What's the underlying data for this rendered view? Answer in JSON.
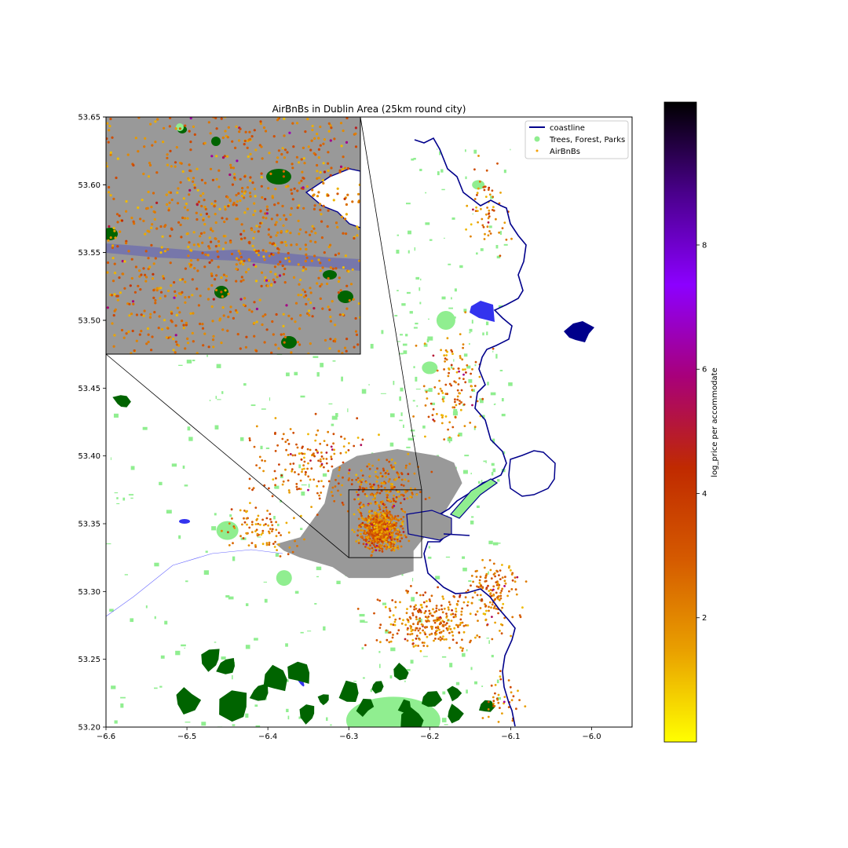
{
  "chart_data": {
    "type": "scatter",
    "title": "AirBnBs in Dublin Area (25km round city)",
    "xlabel": "",
    "ylabel": "",
    "xlim": [
      -6.6,
      -5.95
    ],
    "ylim": [
      53.2,
      53.65
    ],
    "xticks": [
      {
        "v": -6.6,
        "label": "−6.6"
      },
      {
        "v": -6.5,
        "label": "−6.5"
      },
      {
        "v": -6.4,
        "label": "−6.4"
      },
      {
        "v": -6.3,
        "label": "−6.3"
      },
      {
        "v": -6.2,
        "label": "−6.2"
      },
      {
        "v": -6.1,
        "label": "−6.1"
      },
      {
        "v": -6.0,
        "label": "−6.0"
      }
    ],
    "yticks": [
      {
        "v": 53.2,
        "label": "53.20"
      },
      {
        "v": 53.25,
        "label": "53.25"
      },
      {
        "v": 53.3,
        "label": "53.30"
      },
      {
        "v": 53.35,
        "label": "53.35"
      },
      {
        "v": 53.4,
        "label": "53.40"
      },
      {
        "v": 53.45,
        "label": "53.45"
      },
      {
        "v": 53.5,
        "label": "53.50"
      },
      {
        "v": 53.55,
        "label": "53.55"
      },
      {
        "v": 53.6,
        "label": "53.60"
      },
      {
        "v": 53.65,
        "label": "53.65"
      }
    ],
    "legend": {
      "placement": "top-right",
      "entries": [
        {
          "label": "coastline",
          "kind": "line",
          "color": "#00008b"
        },
        {
          "label": "Trees, Forest, Parks",
          "kind": "circle",
          "color": "#90ee90"
        },
        {
          "label": "AirBnBs",
          "kind": "dot",
          "color": "#f5a000"
        }
      ]
    },
    "inset": {
      "xlim": [
        -6.3,
        -6.21
      ],
      "ylim": [
        53.325,
        53.375
      ],
      "yticks": [
        {
          "v": 53.5,
          "label": "53.50"
        },
        {
          "v": 53.55,
          "label": "53.55"
        },
        {
          "v": 53.6,
          "label": "53.60"
        },
        {
          "v": 53.65,
          "label": "53.65"
        }
      ]
    },
    "colorbar": {
      "label": "log_price per accommodate",
      "cmap": "gnuplot_r",
      "range": [
        0,
        10.3
      ],
      "ticks": [
        {
          "v": 2,
          "label": "2"
        },
        {
          "v": 4,
          "label": "4"
        },
        {
          "v": 6,
          "label": "6"
        },
        {
          "v": 8,
          "label": "8"
        }
      ],
      "stops": [
        "#ffff00",
        "#e9a000",
        "#d55a00",
        "#c02a00",
        "#a8007a",
        "#8c00ff",
        "#4a008c",
        "#000000"
      ]
    },
    "colors": {
      "coastline": "#00008b",
      "parks": "#90ee90",
      "forest": "#006400",
      "water": "#3333ee",
      "urban": "#999999",
      "airbnb": "#f5a000"
    }
  }
}
